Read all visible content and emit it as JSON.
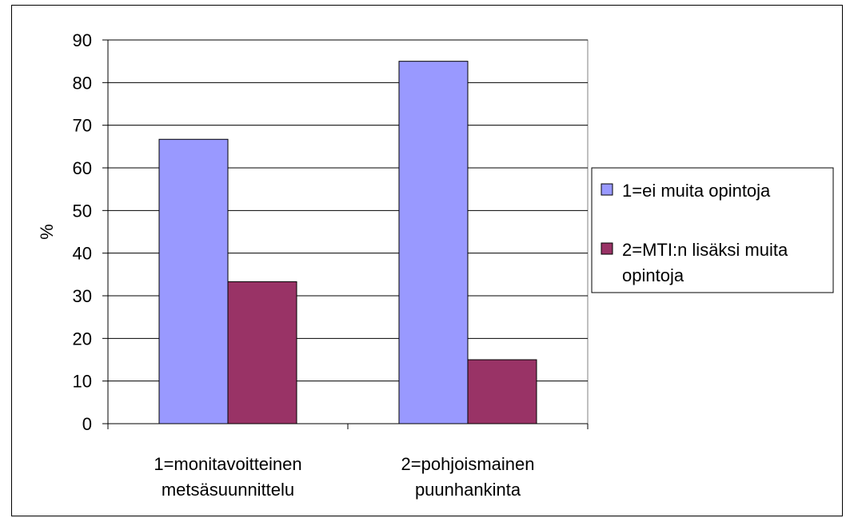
{
  "chart_data": {
    "type": "bar",
    "title": "",
    "xlabel": "",
    "ylabel": "%",
    "ylim": [
      0,
      90
    ],
    "yticks": [
      0,
      10,
      20,
      30,
      40,
      50,
      60,
      70,
      80,
      90
    ],
    "grid": true,
    "legend_position": "right",
    "categories": [
      [
        "1=monitavoitteinen",
        "metsäsuunnittelu"
      ],
      [
        "2=pohjoismainen",
        "puunhankinta"
      ]
    ],
    "series": [
      {
        "name": [
          "1=ei muita opintoja"
        ],
        "color": "#9999FF",
        "values": [
          66.7,
          85.0
        ]
      },
      {
        "name": [
          "2=MTI:n lisäksi muita",
          "opintoja"
        ],
        "color": "#993366",
        "values": [
          33.3,
          15.0
        ]
      }
    ]
  }
}
